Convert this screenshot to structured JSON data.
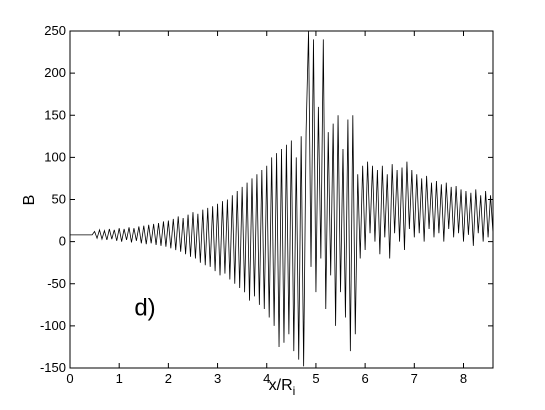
{
  "chart_data": {
    "type": "line",
    "xlabel": "x/R",
    "xlabel_sub": "i",
    "ylabel": "B",
    "annotation": "d)",
    "xlim": [
      0,
      8.6
    ],
    "ylim": [
      -150,
      250
    ],
    "xticks": [
      0,
      1,
      2,
      3,
      4,
      5,
      6,
      7,
      8
    ],
    "yticks": [
      -150,
      -100,
      -50,
      0,
      50,
      100,
      150,
      200,
      250
    ],
    "series": [
      {
        "color": "#000000",
        "x": [
          0,
          0.45,
          0.5,
          0.55,
          0.6,
          0.65,
          0.7,
          0.75,
          0.8,
          0.85,
          0.9,
          0.95,
          1.0,
          1.05,
          1.1,
          1.15,
          1.2,
          1.25,
          1.3,
          1.35,
          1.4,
          1.45,
          1.5,
          1.55,
          1.6,
          1.65,
          1.7,
          1.75,
          1.8,
          1.85,
          1.9,
          1.95,
          2.0,
          2.05,
          2.1,
          2.15,
          2.2,
          2.25,
          2.3,
          2.35,
          2.4,
          2.45,
          2.5,
          2.55,
          2.6,
          2.65,
          2.7,
          2.75,
          2.8,
          2.85,
          2.9,
          2.95,
          3.0,
          3.05,
          3.1,
          3.15,
          3.2,
          3.25,
          3.3,
          3.35,
          3.4,
          3.45,
          3.5,
          3.55,
          3.6,
          3.65,
          3.7,
          3.75,
          3.8,
          3.85,
          3.9,
          3.95,
          4.0,
          4.05,
          4.1,
          4.15,
          4.2,
          4.25,
          4.3,
          4.35,
          4.4,
          4.45,
          4.5,
          4.55,
          4.6,
          4.65,
          4.7,
          4.75,
          4.8,
          4.85,
          4.9,
          4.95,
          5.0,
          5.05,
          5.1,
          5.15,
          5.2,
          5.25,
          5.3,
          5.35,
          5.4,
          5.45,
          5.5,
          5.55,
          5.6,
          5.65,
          5.7,
          5.75,
          5.8,
          5.85,
          5.9,
          5.95,
          6.0,
          6.05,
          6.1,
          6.15,
          6.2,
          6.25,
          6.3,
          6.35,
          6.4,
          6.45,
          6.5,
          6.55,
          6.6,
          6.65,
          6.7,
          6.75,
          6.8,
          6.85,
          6.9,
          6.95,
          7.0,
          7.05,
          7.1,
          7.15,
          7.2,
          7.25,
          7.3,
          7.35,
          7.4,
          7.45,
          7.5,
          7.55,
          7.6,
          7.65,
          7.7,
          7.75,
          7.8,
          7.85,
          7.9,
          7.95,
          8.0,
          8.05,
          8.1,
          8.15,
          8.2,
          8.25,
          8.3,
          8.35,
          8.4,
          8.45,
          8.5,
          8.55,
          8.6
        ],
        "values": [
          8,
          8,
          12,
          4,
          14,
          3,
          13,
          2,
          15,
          3,
          14,
          1,
          16,
          0,
          15,
          2,
          17,
          -1,
          16,
          1,
          18,
          -2,
          19,
          -3,
          20,
          -2,
          21,
          -4,
          22,
          -5,
          24,
          -6,
          25,
          -8,
          27,
          -10,
          30,
          -12,
          28,
          -15,
          32,
          -18,
          35,
          -20,
          33,
          -25,
          38,
          -28,
          40,
          -30,
          42,
          -35,
          45,
          -40,
          48,
          -38,
          50,
          -45,
          55,
          -50,
          60,
          -55,
          65,
          -60,
          70,
          -70,
          75,
          -65,
          80,
          -75,
          85,
          -80,
          90,
          -90,
          100,
          -100,
          105,
          -125,
          110,
          -120,
          115,
          -110,
          120,
          -130,
          100,
          -140,
          125,
          -148,
          130,
          250,
          -30,
          240,
          -60,
          160,
          -20,
          240,
          -80,
          130,
          -40,
          140,
          -100,
          150,
          -60,
          110,
          -90,
          145,
          -130,
          150,
          -110,
          80,
          -20,
          90,
          -10,
          95,
          10,
          90,
          0,
          85,
          -15,
          90,
          5,
          80,
          -20,
          92,
          10,
          85,
          0,
          88,
          -10,
          95,
          15,
          85,
          5,
          80,
          10,
          75,
          0,
          78,
          15,
          70,
          5,
          72,
          10,
          68,
          0,
          70,
          15,
          65,
          5,
          66,
          10,
          62,
          0,
          60,
          8,
          58,
          -5,
          62,
          10,
          55,
          0,
          60,
          5,
          55,
          10
        ]
      }
    ]
  }
}
